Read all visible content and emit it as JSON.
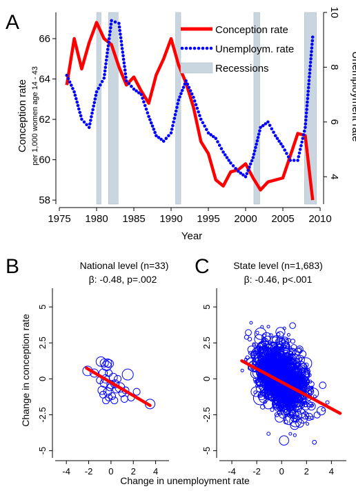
{
  "chart_data": [
    {
      "panel_label": "A",
      "type": "line",
      "xlabel": "Year",
      "ylabel": "Conception rate",
      "ylabel_sub": "per 1,000 women age 14 - 43",
      "y2label": "Unemployment rate",
      "xlim": [
        1975,
        2010
      ],
      "ylim": [
        57.8,
        67.3
      ],
      "y2lim": [
        3.0,
        10.0
      ],
      "xticks": [
        "1975",
        "1980",
        "1985",
        "1990",
        "1995",
        "2000",
        "2005",
        "2010"
      ],
      "yticks": [
        "58",
        "60",
        "62",
        "64",
        "66"
      ],
      "y2ticks": [
        "4",
        "6",
        "8",
        "10"
      ],
      "legend_position": "top-right",
      "recessions": [
        [
          1980.0,
          1980.6
        ],
        [
          1981.6,
          1982.9
        ],
        [
          1990.6,
          1991.3
        ],
        [
          2001.1,
          2001.9
        ],
        [
          2007.9,
          2009.5
        ]
      ],
      "series": [
        {
          "name": "Conception rate",
          "axis": "left",
          "color": "#ff0000",
          "x": [
            1976,
            1977,
            1978,
            1979,
            1980,
            1981,
            1982,
            1983,
            1984,
            1985,
            1986,
            1987,
            1988,
            1989,
            1990,
            1991,
            1992,
            1993,
            1994,
            1995,
            1996,
            1997,
            1998,
            1999,
            2000,
            2001,
            2002,
            2003,
            2004,
            2005,
            2006,
            2007,
            2008,
            2009
          ],
          "y": [
            63.7,
            66.0,
            64.5,
            65.8,
            66.8,
            66.0,
            65.7,
            64.6,
            63.7,
            64.1,
            63.4,
            62.8,
            64.2,
            65.0,
            66.0,
            64.7,
            63.8,
            62.6,
            60.9,
            60.3,
            59.0,
            58.7,
            59.4,
            59.5,
            59.8,
            59.1,
            58.5,
            58.9,
            59.0,
            59.1,
            60.2,
            61.3,
            61.2,
            58.0
          ]
        },
        {
          "name": "Unemploym. rate",
          "axis": "right",
          "color": "#0000ff",
          "x": [
            1976,
            1977,
            1978,
            1979,
            1980,
            1981,
            1982,
            1983,
            1984,
            1985,
            1986,
            1987,
            1988,
            1989,
            1990,
            1991,
            1992,
            1993,
            1994,
            1995,
            1996,
            1997,
            1998,
            1999,
            2000,
            2001,
            2002,
            2003,
            2004,
            2005,
            2006,
            2007,
            2008,
            2009
          ],
          "y": [
            7.7,
            7.1,
            6.1,
            5.8,
            7.1,
            7.6,
            9.7,
            9.6,
            7.5,
            7.2,
            7.0,
            6.2,
            5.5,
            5.3,
            5.6,
            6.8,
            7.5,
            6.9,
            6.1,
            5.6,
            5.4,
            4.9,
            4.5,
            4.2,
            4.0,
            4.7,
            5.8,
            6.0,
            5.5,
            5.1,
            4.6,
            4.6,
            5.8,
            9.1
          ]
        },
        {
          "name": "Recessions",
          "color": "#c9d6df"
        }
      ]
    },
    {
      "panel_label": "B",
      "type": "scatter",
      "title": "National level (n=33)",
      "subtitle": "β: -0.48, p=.002",
      "xlim": [
        -5,
        5.2
      ],
      "ylim": [
        -5.5,
        6.3
      ],
      "xticks": [
        "-4",
        "-2",
        "0",
        "2",
        "4"
      ],
      "yticks": [
        "-5",
        "-2.5",
        "0",
        "2.5",
        "5"
      ],
      "ylabel": "Change in conception rate",
      "fit": {
        "x": [
          -2.2,
          3.5
        ],
        "y": [
          0.75,
          -1.85
        ],
        "color": "#ff0000"
      },
      "points": [
        {
          "x": -2.1,
          "y": 0.55,
          "r": 7
        },
        {
          "x": -1.5,
          "y": 0.4,
          "r": 6
        },
        {
          "x": -0.9,
          "y": 1.2,
          "r": 7
        },
        {
          "x": -0.6,
          "y": 1.1,
          "r": 6
        },
        {
          "x": -0.4,
          "y": 0.9,
          "r": 7
        },
        {
          "x": -0.3,
          "y": 1.1,
          "r": 6
        },
        {
          "x": -0.15,
          "y": 1.05,
          "r": 6
        },
        {
          "x": -0.7,
          "y": 0.4,
          "r": 6
        },
        {
          "x": -0.5,
          "y": 0.0,
          "r": 6
        },
        {
          "x": -0.6,
          "y": -0.3,
          "r": 6
        },
        {
          "x": -0.8,
          "y": -0.8,
          "r": 6
        },
        {
          "x": -0.7,
          "y": -1.1,
          "r": 5
        },
        {
          "x": -0.3,
          "y": -0.9,
          "r": 6
        },
        {
          "x": -0.1,
          "y": -0.6,
          "r": 5
        },
        {
          "x": 0.0,
          "y": -0.4,
          "r": 6
        },
        {
          "x": 0.2,
          "y": 0.1,
          "r": 6
        },
        {
          "x": 0.35,
          "y": -0.35,
          "r": 6
        },
        {
          "x": 0.5,
          "y": -0.7,
          "r": 6
        },
        {
          "x": -0.2,
          "y": -1.3,
          "r": 5
        },
        {
          "x": 0.1,
          "y": -1.2,
          "r": 5
        },
        {
          "x": 0.8,
          "y": -0.6,
          "r": 7
        },
        {
          "x": 1.0,
          "y": -1.0,
          "r": 5
        },
        {
          "x": 1.3,
          "y": -0.8,
          "r": 5
        },
        {
          "x": 1.5,
          "y": 0.3,
          "r": 8
        },
        {
          "x": 1.8,
          "y": -1.3,
          "r": 5
        },
        {
          "x": 2.3,
          "y": -0.9,
          "r": 5
        },
        {
          "x": 3.5,
          "y": -1.75,
          "r": 7
        },
        {
          "x": -0.2,
          "y": 0.4,
          "r": 5
        },
        {
          "x": 0.6,
          "y": 0.0,
          "r": 5
        },
        {
          "x": -1.0,
          "y": -0.1,
          "r": 5
        },
        {
          "x": 0.3,
          "y": -1.5,
          "r": 5
        },
        {
          "x": 1.2,
          "y": -1.4,
          "r": 5
        },
        {
          "x": -0.45,
          "y": -1.5,
          "r": 5
        }
      ]
    },
    {
      "panel_label": "C",
      "type": "scatter",
      "title": "State level (n=1,683)",
      "subtitle": "β: -0.46, p<.001",
      "xlim": [
        -5,
        5.2
      ],
      "ylim": [
        -5.5,
        6.3
      ],
      "xticks": [
        "-4",
        "-2",
        "0",
        "2",
        "4"
      ],
      "yticks": [
        "-5",
        "-2.5",
        "0",
        "2.5",
        "5"
      ],
      "xlabel": "Change in unemployment rate",
      "fit": {
        "x": [
          -3.2,
          4.7
        ],
        "y": [
          1.25,
          -2.4
        ],
        "color": "#ff0000"
      },
      "n": 1683
    }
  ]
}
